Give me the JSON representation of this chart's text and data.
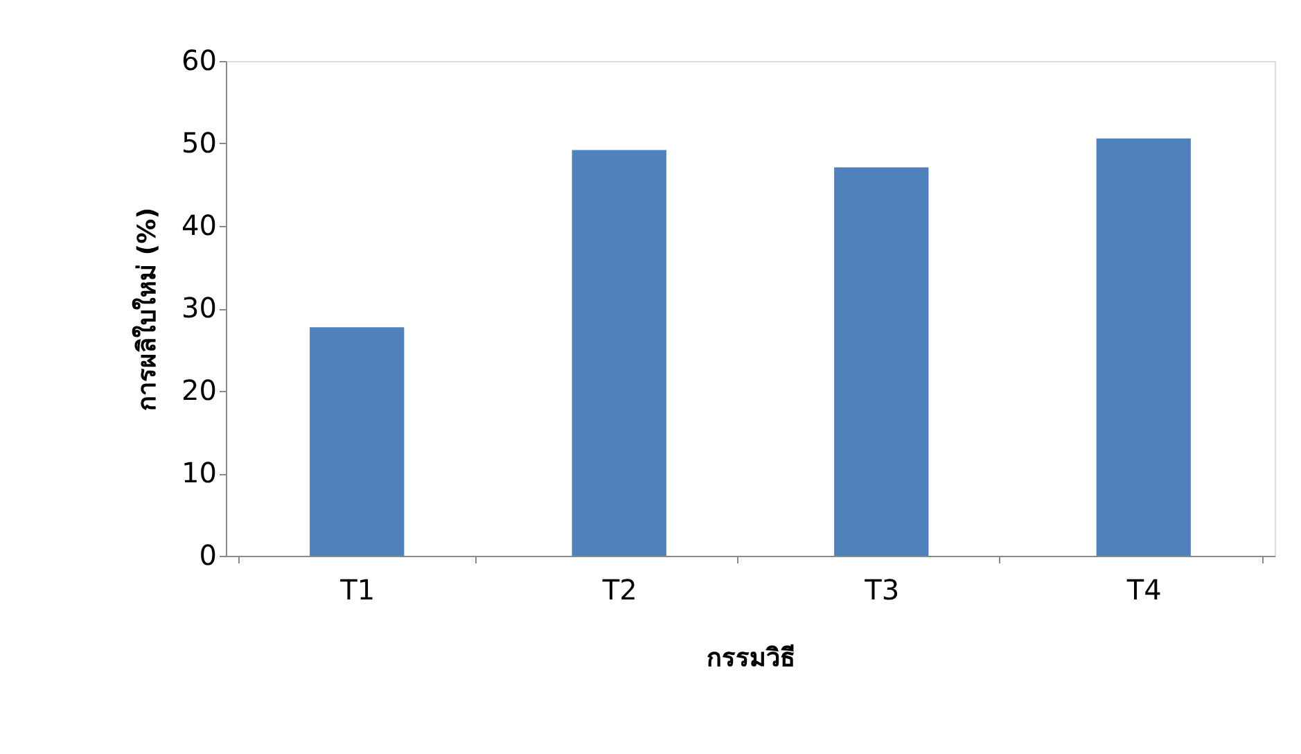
{
  "chart_data": {
    "type": "bar",
    "categories": [
      "T1",
      "T2",
      "T3",
      "T4"
    ],
    "values": [
      27.7,
      49.2,
      47.1,
      50.6
    ],
    "color": "#4f81bd",
    "xlabel": "กรรมวิธี",
    "ylabel": "การผลิใบใหม่ (%)",
    "ylim": [
      0,
      60
    ],
    "yticks": [
      0,
      10,
      20,
      30,
      40,
      50,
      60
    ],
    "grid": false
  }
}
